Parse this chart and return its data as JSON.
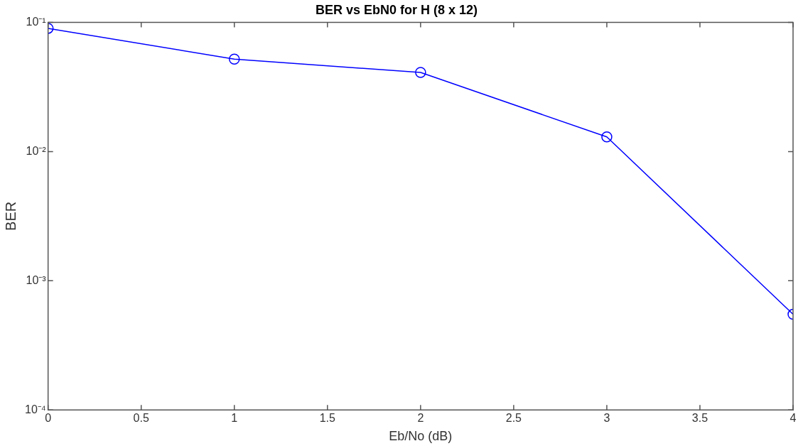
{
  "chart_data": {
    "type": "line",
    "title": "BER vs EbN0 for H (8 x 12)",
    "xlabel": "Eb/No (dB)",
    "ylabel": "BER",
    "x": [
      0,
      1,
      2,
      3,
      4
    ],
    "series": [
      {
        "color": "#0000ff",
        "values": [
          0.09,
          0.052,
          0.041,
          0.013,
          0.00055
        ]
      }
    ],
    "log": "y",
    "xlim": [
      0,
      4
    ],
    "xticks": [
      0,
      0.5,
      1,
      1.5,
      2,
      2.5,
      3,
      3.5,
      4
    ],
    "ylim": [
      0.0001,
      0.1
    ],
    "yticks": [
      {
        "value": 0.0001,
        "label": "10⁻⁴"
      },
      {
        "value": 0.001,
        "label": "10⁻³"
      },
      {
        "value": 0.01,
        "label": "10⁻²"
      },
      {
        "value": 0.1,
        "label": "10⁻¹"
      }
    ],
    "grid": false,
    "legend": false,
    "marker": "circle",
    "line_style": "solid"
  }
}
